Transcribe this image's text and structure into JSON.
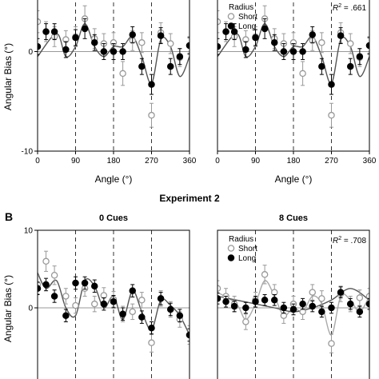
{
  "texts": {
    "experiment2_title": "Experiment 2",
    "panel_b_label": "B",
    "y_axis_label": "Angular Bias (°)",
    "x_axis_label": "Angle (°)"
  },
  "colors": {
    "short_marker": "#999999",
    "long_marker": "#000000",
    "fit_line": "#555555",
    "zero_line": "#999999"
  },
  "chart_data": [
    {
      "type": "scatter",
      "experiment": "",
      "panel_title": "",
      "xlabel": "Angle (°)",
      "ylabel": "Angular Bias (°)",
      "xlim": [
        0,
        360
      ],
      "ylim": [
        -10,
        10
      ],
      "xticks": [
        0,
        90,
        180,
        270,
        360
      ],
      "yticks": [
        -10,
        0
      ],
      "dashed_lines_at": [
        90,
        180,
        270
      ],
      "legend": null,
      "r2": null,
      "x": [
        0,
        20,
        40,
        67,
        90,
        112,
        135,
        157,
        180,
        202,
        225,
        247,
        270,
        292,
        315,
        337,
        360
      ],
      "series": [
        {
          "name": "Short",
          "marker": "open-circle",
          "values": [
            3.0,
            2.0,
            1.5,
            1.2,
            1.5,
            3.3,
            1.3,
            0.8,
            0.9,
            -2.2,
            1.1,
            0.9,
            -6.4,
            1.9,
            0.8,
            -0.6,
            0.6
          ],
          "errors": [
            1.1,
            1.0,
            1.0,
            0.9,
            1.0,
            1.3,
            1.0,
            1.0,
            1.0,
            1.2,
            1.0,
            1.0,
            1.2,
            1.0,
            1.0,
            0.9,
            0.9
          ]
        },
        {
          "name": "Long",
          "marker": "filled-circle",
          "values": [
            0.5,
            2.0,
            2.0,
            0.2,
            1.4,
            2.3,
            0.9,
            0.0,
            0.0,
            0.0,
            1.7,
            -1.5,
            -3.3,
            1.6,
            -1.5,
            -0.5,
            0.6
          ],
          "errors": [
            0.8,
            0.8,
            0.8,
            0.8,
            0.8,
            1.0,
            0.8,
            0.8,
            0.8,
            0.8,
            0.8,
            0.8,
            1.0,
            0.8,
            0.8,
            0.8,
            0.8
          ]
        }
      ],
      "fit": {
        "series": "Long",
        "x": [
          0,
          45,
          67,
          90,
          112,
          135,
          157,
          180,
          202,
          225,
          247,
          270,
          292,
          315,
          337,
          360
        ],
        "values": [
          -0.5,
          1.8,
          -0.5,
          0.5,
          2.8,
          0.5,
          -0.5,
          0.5,
          0.5,
          1.5,
          -0.5,
          -3.2,
          1.2,
          0.5,
          -2.5,
          -0.5
        ]
      }
    },
    {
      "type": "scatter",
      "experiment": "",
      "panel_title": "",
      "xlabel": "Angle (°)",
      "ylabel": "",
      "xlim": [
        0,
        360
      ],
      "ylim": [
        -10,
        10
      ],
      "xticks": [
        0,
        90,
        180,
        270,
        360
      ],
      "yticks": [],
      "dashed_lines_at": [
        90,
        180,
        270
      ],
      "legend": {
        "title": "Radius",
        "entries": [
          "Short",
          "Long"
        ],
        "position": "top-left"
      },
      "r2": ".661",
      "x": [
        0,
        20,
        40,
        67,
        90,
        112,
        135,
        157,
        180,
        202,
        225,
        247,
        270,
        292,
        315,
        337,
        360
      ],
      "series": [
        {
          "name": "Short",
          "marker": "open-circle",
          "values": [
            3.0,
            2.0,
            1.5,
            1.2,
            1.5,
            3.3,
            1.3,
            0.8,
            0.9,
            -2.2,
            1.1,
            0.9,
            -6.4,
            1.9,
            0.8,
            -0.6,
            0.6
          ],
          "errors": [
            1.1,
            1.0,
            1.0,
            0.9,
            1.0,
            1.3,
            1.0,
            1.0,
            1.0,
            1.2,
            1.0,
            1.0,
            1.2,
            1.0,
            1.0,
            0.9,
            0.9
          ]
        },
        {
          "name": "Long",
          "marker": "filled-circle",
          "values": [
            0.5,
            2.0,
            2.0,
            0.2,
            1.4,
            2.3,
            0.9,
            0.0,
            0.0,
            0.0,
            1.7,
            -1.5,
            -3.3,
            1.6,
            -1.5,
            -0.5,
            0.6
          ],
          "errors": [
            0.8,
            0.8,
            0.8,
            0.8,
            0.8,
            1.0,
            0.8,
            0.8,
            0.8,
            0.8,
            0.8,
            0.8,
            1.0,
            0.8,
            0.8,
            0.8,
            0.8
          ]
        }
      ],
      "fit": {
        "series": "Long",
        "x": [
          0,
          45,
          67,
          90,
          112,
          135,
          157,
          180,
          202,
          225,
          247,
          270,
          292,
          315,
          337,
          360
        ],
        "values": [
          -0.5,
          1.8,
          -0.5,
          0.5,
          2.8,
          0.5,
          -0.5,
          0.5,
          0.5,
          1.5,
          -0.5,
          -3.2,
          1.2,
          0.5,
          -2.5,
          -0.5
        ]
      }
    },
    {
      "type": "scatter",
      "experiment": "Experiment 2",
      "panel_title": "0 Cues",
      "xlabel": "",
      "ylabel": "Angular Bias (°)",
      "xlim": [
        0,
        360
      ],
      "ylim": [
        -10,
        10
      ],
      "xticks": [],
      "yticks": [
        10,
        0
      ],
      "dashed_lines_at": [
        90,
        180,
        270
      ],
      "legend": null,
      "r2": null,
      "x": [
        0,
        20,
        40,
        67,
        90,
        112,
        135,
        157,
        180,
        202,
        225,
        247,
        270,
        292,
        315,
        337,
        360
      ],
      "series": [
        {
          "name": "Short",
          "marker": "open-circle",
          "values": [
            3.0,
            6.0,
            4.2,
            1.5,
            0.3,
            2.5,
            0.5,
            1.6,
            1.1,
            -0.8,
            -0.5,
            1.0,
            -4.5,
            1.2,
            -0.2,
            -1.5,
            -3.5
          ],
          "errors": [
            1.2,
            1.3,
            1.2,
            1.0,
            1.0,
            1.0,
            1.0,
            1.0,
            1.0,
            1.0,
            1.0,
            1.0,
            1.2,
            1.0,
            1.0,
            1.0,
            1.2
          ]
        },
        {
          "name": "Long",
          "marker": "filled-circle",
          "values": [
            2.5,
            3.0,
            1.5,
            -1.0,
            3.2,
            3.2,
            2.8,
            0.5,
            0.8,
            -0.8,
            2.2,
            -1.2,
            -2.6,
            1.2,
            -0.2,
            -1.0,
            -3.5
          ],
          "errors": [
            0.8,
            0.8,
            0.8,
            0.8,
            0.8,
            0.8,
            0.8,
            0.8,
            0.8,
            0.8,
            0.8,
            0.8,
            0.8,
            0.8,
            0.8,
            0.8,
            0.8
          ]
        }
      ],
      "fit": {
        "series": "Long",
        "x": [
          0,
          20,
          45,
          67,
          90,
          112,
          135,
          157,
          180,
          202,
          225,
          247,
          270,
          292,
          315,
          337,
          360
        ],
        "values": [
          4.5,
          2.5,
          3.5,
          0.0,
          -1.0,
          3.5,
          2.8,
          0.0,
          1.5,
          -1.5,
          2.2,
          -0.5,
          -2.8,
          1.0,
          0.3,
          -1.0,
          -3.5
        ]
      }
    },
    {
      "type": "scatter",
      "experiment": "Experiment 2",
      "panel_title": "8 Cues",
      "xlabel": "",
      "ylabel": "",
      "xlim": [
        0,
        360
      ],
      "ylim": [
        -10,
        10
      ],
      "xticks": [],
      "yticks": [],
      "dashed_lines_at": [
        90,
        180,
        270
      ],
      "legend": {
        "title": "Radius",
        "entries": [
          "Short",
          "Long"
        ],
        "position": "top-left"
      },
      "r2": ".708",
      "x": [
        0,
        20,
        40,
        67,
        90,
        112,
        135,
        157,
        180,
        202,
        225,
        247,
        270,
        292,
        315,
        337,
        360
      ],
      "series": [
        {
          "name": "Short",
          "marker": "open-circle",
          "values": [
            2.5,
            1.5,
            0.5,
            -1.8,
            1.0,
            4.3,
            2.0,
            -1.0,
            0.5,
            -0.5,
            2.0,
            1.2,
            -4.6,
            1.8,
            0.5,
            1.3,
            1.5
          ],
          "errors": [
            1.0,
            1.0,
            1.0,
            1.0,
            1.0,
            1.2,
            1.0,
            1.0,
            1.0,
            1.0,
            1.0,
            1.0,
            1.2,
            1.0,
            1.0,
            1.0,
            1.0
          ]
        },
        {
          "name": "Long",
          "marker": "filled-circle",
          "values": [
            1.2,
            0.8,
            0.2,
            0.0,
            0.8,
            1.0,
            1.0,
            0.0,
            -0.2,
            0.5,
            0.2,
            -0.5,
            0.0,
            2.0,
            0.5,
            -0.5,
            0.5
          ],
          "errors": [
            0.7,
            0.7,
            0.7,
            0.7,
            0.7,
            0.7,
            0.7,
            0.7,
            0.7,
            0.7,
            0.7,
            0.7,
            0.7,
            0.7,
            0.7,
            0.7,
            0.7
          ]
        }
      ],
      "fit": {
        "series": "Long",
        "x": [
          0,
          45,
          90,
          135,
          180,
          225,
          270,
          315,
          360
        ],
        "values": [
          1.5,
          1.0,
          0.5,
          0.0,
          -0.5,
          0.0,
          1.0,
          2.5,
          1.0
        ]
      },
      "fit_short": {
        "series": "Short",
        "x": [
          0,
          45,
          67,
          90,
          112,
          135,
          157,
          180,
          202,
          225,
          247,
          270,
          292,
          315,
          337,
          360
        ],
        "values": [
          2.0,
          0.5,
          -1.5,
          0.5,
          3.5,
          1.5,
          -1.0,
          0.0,
          -0.5,
          1.5,
          0.5,
          -3.5,
          1.5,
          1.0,
          -0.5,
          1.5
        ]
      }
    }
  ]
}
